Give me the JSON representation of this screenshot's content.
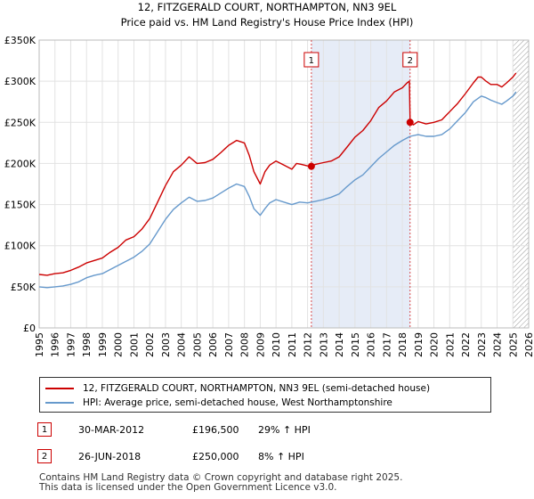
{
  "chart_data": {
    "type": "line",
    "title": "12, FITZGERALD COURT, NORTHAMPTON, NN3 9EL",
    "subtitle": "Price paid vs. HM Land Registry's House Price Index (HPI)",
    "xlabel": "",
    "ylabel": "",
    "xlim": [
      1995,
      2026
    ],
    "ylim": [
      0,
      350000
    ],
    "x_ticks": [
      1995,
      1996,
      1997,
      1998,
      1999,
      2000,
      2001,
      2002,
      2003,
      2004,
      2005,
      2006,
      2007,
      2008,
      2009,
      2010,
      2011,
      2012,
      2013,
      2014,
      2015,
      2016,
      2017,
      2018,
      2019,
      2020,
      2021,
      2022,
      2023,
      2024,
      2025,
      2026
    ],
    "y_ticks": [
      {
        "value": 0,
        "label": "£0"
      },
      {
        "value": 50000,
        "label": "£50K"
      },
      {
        "value": 100000,
        "label": "£100K"
      },
      {
        "value": 150000,
        "label": "£150K"
      },
      {
        "value": 200000,
        "label": "£200K"
      },
      {
        "value": 250000,
        "label": "£250K"
      },
      {
        "value": 300000,
        "label": "£300K"
      },
      {
        "value": 350000,
        "label": "£350K"
      }
    ],
    "grid": true,
    "shaded_span": [
      2012.24,
      2018.49
    ],
    "forecast_hatch_from": 2025.0,
    "series": [
      {
        "name": "12, FITZGERALD COURT, NORTHAMPTON, NN3 9EL (semi-detached house)",
        "color": "#cc0000",
        "x": [
          1995.0,
          1995.5,
          1996.0,
          1996.5,
          1997.0,
          1997.5,
          1998.0,
          1998.5,
          1999.0,
          1999.5,
          2000.0,
          2000.5,
          2001.0,
          2001.5,
          2002.0,
          2002.5,
          2003.0,
          2003.5,
          2004.0,
          2004.5,
          2005.0,
          2005.5,
          2006.0,
          2006.5,
          2007.0,
          2007.5,
          2008.0,
          2008.3,
          2008.6,
          2009.0,
          2009.3,
          2009.6,
          2010.0,
          2010.5,
          2011.0,
          2011.3,
          2011.6,
          2012.0,
          2012.24,
          2012.5,
          2013.0,
          2013.5,
          2014.0,
          2014.5,
          2015.0,
          2015.5,
          2016.0,
          2016.5,
          2017.0,
          2017.5,
          2018.0,
          2018.3,
          2018.45,
          2018.49,
          2018.7,
          2019.0,
          2019.5,
          2020.0,
          2020.5,
          2021.0,
          2021.5,
          2022.0,
          2022.5,
          2022.8,
          2023.0,
          2023.3,
          2023.6,
          2024.0,
          2024.3,
          2024.6,
          2025.0,
          2025.2
        ],
        "y": [
          65000,
          64000,
          66000,
          67000,
          70000,
          74000,
          79000,
          82000,
          85000,
          92000,
          98000,
          107000,
          111000,
          120000,
          133000,
          153000,
          173000,
          190000,
          198000,
          208000,
          200000,
          201000,
          205000,
          213000,
          222000,
          228000,
          225000,
          210000,
          190000,
          175000,
          190000,
          198000,
          203000,
          198000,
          193000,
          200000,
          199000,
          197000,
          196500,
          199000,
          201000,
          203000,
          208000,
          220000,
          232000,
          240000,
          252000,
          268000,
          276000,
          287000,
          292000,
          298000,
          300000,
          250000,
          247000,
          251000,
          248000,
          250000,
          253000,
          263000,
          273000,
          285000,
          298000,
          305000,
          305000,
          300000,
          296000,
          296000,
          293000,
          298000,
          305000,
          310000
        ]
      },
      {
        "name": "HPI: Average price, semi-detached house, West Northamptonshire",
        "color": "#6699cc",
        "x": [
          1995.0,
          1995.5,
          1996.0,
          1996.5,
          1997.0,
          1997.5,
          1998.0,
          1998.5,
          1999.0,
          1999.5,
          2000.0,
          2000.5,
          2001.0,
          2001.5,
          2002.0,
          2002.5,
          2003.0,
          2003.5,
          2004.0,
          2004.5,
          2005.0,
          2005.5,
          2006.0,
          2006.5,
          2007.0,
          2007.5,
          2008.0,
          2008.3,
          2008.6,
          2009.0,
          2009.3,
          2009.6,
          2010.0,
          2010.5,
          2011.0,
          2011.5,
          2012.0,
          2012.5,
          2013.0,
          2013.5,
          2014.0,
          2014.5,
          2015.0,
          2015.5,
          2016.0,
          2016.5,
          2017.0,
          2017.5,
          2018.0,
          2018.5,
          2019.0,
          2019.5,
          2020.0,
          2020.5,
          2021.0,
          2021.5,
          2022.0,
          2022.5,
          2023.0,
          2023.3,
          2023.6,
          2024.0,
          2024.3,
          2024.6,
          2025.0,
          2025.2
        ],
        "y": [
          50000,
          49000,
          50000,
          51000,
          53000,
          56000,
          61000,
          64000,
          66000,
          71000,
          76000,
          81000,
          86000,
          93000,
          102000,
          117000,
          132000,
          144000,
          152000,
          159000,
          154000,
          155000,
          158000,
          164000,
          170000,
          175000,
          172000,
          160000,
          145000,
          137000,
          145000,
          152000,
          156000,
          153000,
          150000,
          153000,
          152000,
          154000,
          156000,
          159000,
          163000,
          172000,
          180000,
          186000,
          196000,
          206000,
          214000,
          222000,
          228000,
          233000,
          235000,
          233000,
          233000,
          235000,
          242000,
          252000,
          262000,
          275000,
          282000,
          280000,
          277000,
          274000,
          272000,
          276000,
          282000,
          287000
        ]
      }
    ],
    "markers": [
      {
        "label": "1",
        "x": 2012.24,
        "y": 196500,
        "date": "30-MAR-2012",
        "price": "£196,500",
        "hpi": "29% ↑ HPI"
      },
      {
        "label": "2",
        "x": 2018.49,
        "y": 250000,
        "date": "26-JUN-2018",
        "price": "£250,000",
        "hpi": "8% ↑ HPI"
      }
    ]
  },
  "footer": {
    "line1": "Contains HM Land Registry data © Crown copyright and database right 2025.",
    "line2": "This data is licensed under the Open Government Licence v3.0."
  }
}
